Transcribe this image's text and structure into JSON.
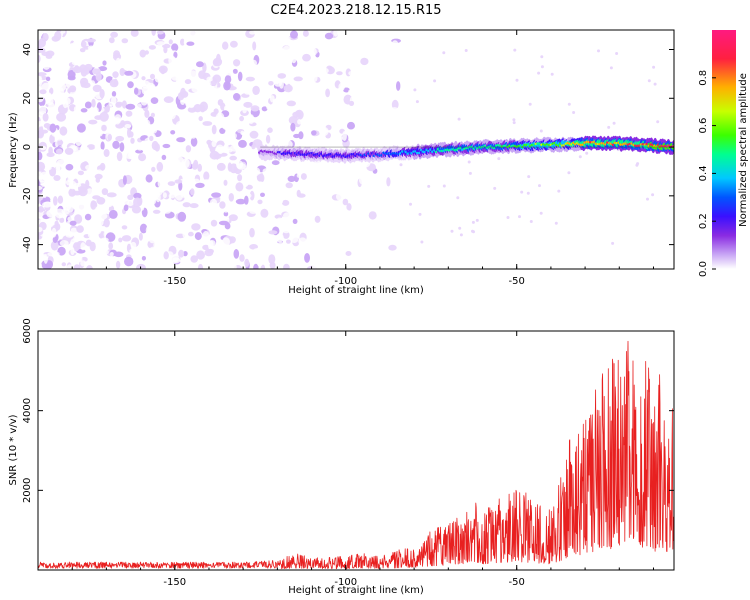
{
  "title": "C2E4.2023.218.12.15.R15",
  "colors": {
    "background": "#ffffff",
    "axes": "#000000",
    "snr_line": "#e82020",
    "colormap": [
      "#ffffff",
      "#e8d6fb",
      "#c9a7f5",
      "#8a2be2",
      "#3a10ff",
      "#0055ff",
      "#00c8ff",
      "#00ff90",
      "#3cff00",
      "#c8ff00",
      "#ffb000",
      "#ff2040",
      "#ff1a80"
    ]
  },
  "chart_data": [
    {
      "type": "heatmap",
      "title": "C2E4.2023.218.12.15.R15",
      "xlabel": "Height of straight line (km)",
      "ylabel": "Frequency (Hz)",
      "xlim": [
        -190,
        -4
      ],
      "ylim": [
        -50,
        48
      ],
      "xticks": [
        -150,
        -100,
        -50
      ],
      "yticks": [
        -40,
        -20,
        0,
        20,
        40
      ],
      "grid": false,
      "colorbar": {
        "label": "Normalized spectral amplitude",
        "range": [
          0,
          1
        ],
        "ticks": [
          "0.0",
          "0.2",
          "0.4",
          "0.6",
          "0.8"
        ]
      },
      "series": [
        {
          "description_of_content": "Broadband noise from -190 to about -85 km; a narrow signal band near 0 Hz from about -125 km to -4 km, strongest (amplitude ~0.9-1.0) near -15 to -4 km",
          "signal_track": {
            "x": [
              -125,
              -110,
              -100,
              -90,
              -80,
              -70,
              -60,
              -50,
              -40,
              -30,
              -20,
              -10,
              -4
            ],
            "frequency": [
              -2,
              -3,
              -3.5,
              -3,
              -2,
              -1,
              0,
              0.5,
              1,
              1.5,
              1.5,
              0.5,
              0
            ],
            "amplitude": [
              0.25,
              0.35,
              0.35,
              0.4,
              0.5,
              0.55,
              0.6,
              0.65,
              0.7,
              0.85,
              0.85,
              0.9,
              1.0
            ]
          }
        }
      ]
    },
    {
      "type": "line",
      "xlabel": "Height of straight line (km)",
      "ylabel": "SNR (10 * v/v)",
      "xlim": [
        -190,
        -4
      ],
      "ylim": [
        0,
        6000
      ],
      "xticks": [
        -150,
        -100,
        -50
      ],
      "yticks": [
        2000,
        4000,
        6000
      ],
      "grid": false,
      "series": [
        {
          "envelope_x": [
            -190,
            -170,
            -150,
            -130,
            -120,
            -115,
            -110,
            -100,
            -95,
            -90,
            -85,
            -80,
            -75,
            -70,
            -65,
            -62,
            -60,
            -55,
            -50,
            -45,
            -40,
            -37,
            -35,
            -30,
            -28,
            -25,
            -20,
            -18,
            -15,
            -12,
            -10,
            -8,
            -4
          ],
          "envelope_max": [
            200,
            200,
            200,
            200,
            250,
            450,
            300,
            350,
            450,
            350,
            500,
            650,
            1000,
            1200,
            1500,
            2000,
            1500,
            1800,
            2100,
            1800,
            1500,
            2400,
            3200,
            4000,
            4400,
            5000,
            5600,
            6000,
            5300,
            5500,
            4600,
            5000,
            4200
          ]
        }
      ]
    }
  ]
}
